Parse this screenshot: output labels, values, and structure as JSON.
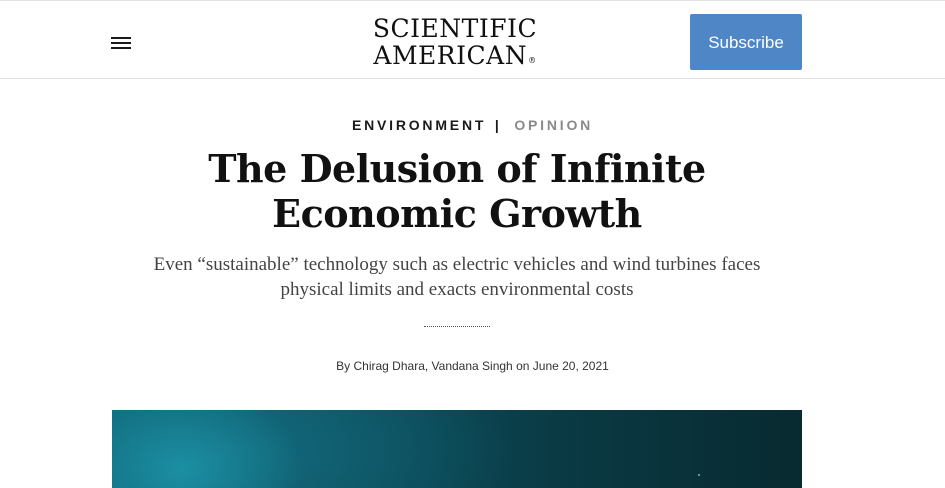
{
  "header": {
    "logo_line1": "SCIENTIFIC",
    "logo_line2": "AMERICAN",
    "logo_mark": "®",
    "subscribe_label": "Subscribe",
    "menu_icon": "hamburger-menu-icon"
  },
  "article": {
    "category": "ENVIRONMENT",
    "separator": "|",
    "type": "OPINION",
    "title": "The Delusion of Infinite Economic Growth",
    "dek": "Even “sustainable” technology such as electric vehicles and wind turbines faces physical limits and exacts environmental costs",
    "byline_prefix": "By",
    "authors": "Chirag Dhara, Vandana Singh",
    "date_prefix": "on",
    "date": "June 20, 2021"
  },
  "colors": {
    "subscribe_bg": "#4f86c6",
    "kicker_type": "#8a8a8a",
    "hero_tint": "#0c4f5e"
  }
}
